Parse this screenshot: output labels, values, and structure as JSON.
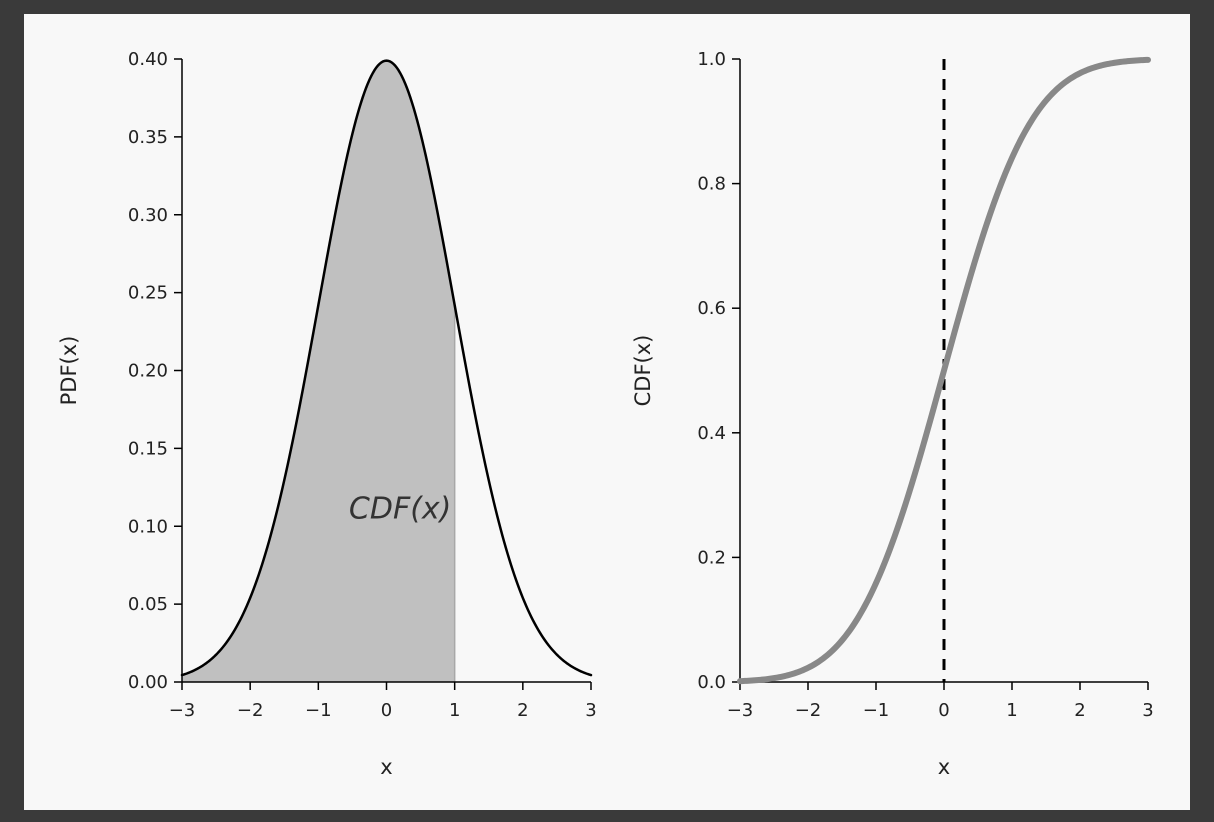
{
  "chart_data": [
    {
      "type": "area",
      "xlabel": "x",
      "ylabel": "PDF(x)",
      "xlim": [
        -3,
        3
      ],
      "ylim": [
        0,
        0.4
      ],
      "xticks": [
        -3,
        -2,
        -1,
        0,
        1,
        2,
        3
      ],
      "xtick_labels": [
        "−3",
        "−2",
        "−1",
        "0",
        "1",
        "2",
        "3"
      ],
      "yticks": [
        0.0,
        0.05,
        0.1,
        0.15,
        0.2,
        0.25,
        0.3,
        0.35,
        0.4
      ],
      "ytick_labels": [
        "0.00",
        "0.05",
        "0.10",
        "0.15",
        "0.20",
        "0.25",
        "0.30",
        "0.35",
        "0.40"
      ],
      "series": [
        {
          "x": [
            -3,
            -2.5,
            -2,
            -1.5,
            -1,
            -0.5,
            0,
            0.5,
            1,
            1.5,
            2,
            2.5,
            3
          ],
          "y": [
            0.004,
            0.018,
            0.054,
            0.13,
            0.242,
            0.352,
            0.399,
            0.352,
            0.242,
            0.13,
            0.054,
            0.018,
            0.004
          ],
          "color": "#000000"
        }
      ],
      "shaded_region": {
        "from": -3,
        "to": 1,
        "color": "#c0c0c0"
      },
      "annotation": {
        "text": "CDF(x)",
        "x": 0.2,
        "y": 0.105
      },
      "grid": false
    },
    {
      "type": "line",
      "xlabel": "x",
      "ylabel": "CDF(x)",
      "xlim": [
        -3,
        3
      ],
      "ylim": [
        0,
        1.0
      ],
      "xticks": [
        -3,
        -2,
        -1,
        0,
        1,
        2,
        3
      ],
      "xtick_labels": [
        "−3",
        "−2",
        "−1",
        "0",
        "1",
        "2",
        "3"
      ],
      "yticks": [
        0.0,
        0.2,
        0.4,
        0.6,
        0.8,
        1.0
      ],
      "ytick_labels": [
        "0.0",
        "0.2",
        "0.4",
        "0.6",
        "0.8",
        "1.0"
      ],
      "series": [
        {
          "x": [
            -3,
            -2.5,
            -2,
            -1.5,
            -1,
            -0.5,
            0,
            0.5,
            1,
            1.5,
            2,
            2.5,
            3
          ],
          "y": [
            0.001,
            0.006,
            0.023,
            0.067,
            0.159,
            0.309,
            0.5,
            0.691,
            0.841,
            0.933,
            0.977,
            0.994,
            0.999
          ],
          "color": "#888888"
        }
      ],
      "vline": {
        "x": 0,
        "style": "dashed",
        "color": "#000000"
      },
      "grid": false
    }
  ]
}
